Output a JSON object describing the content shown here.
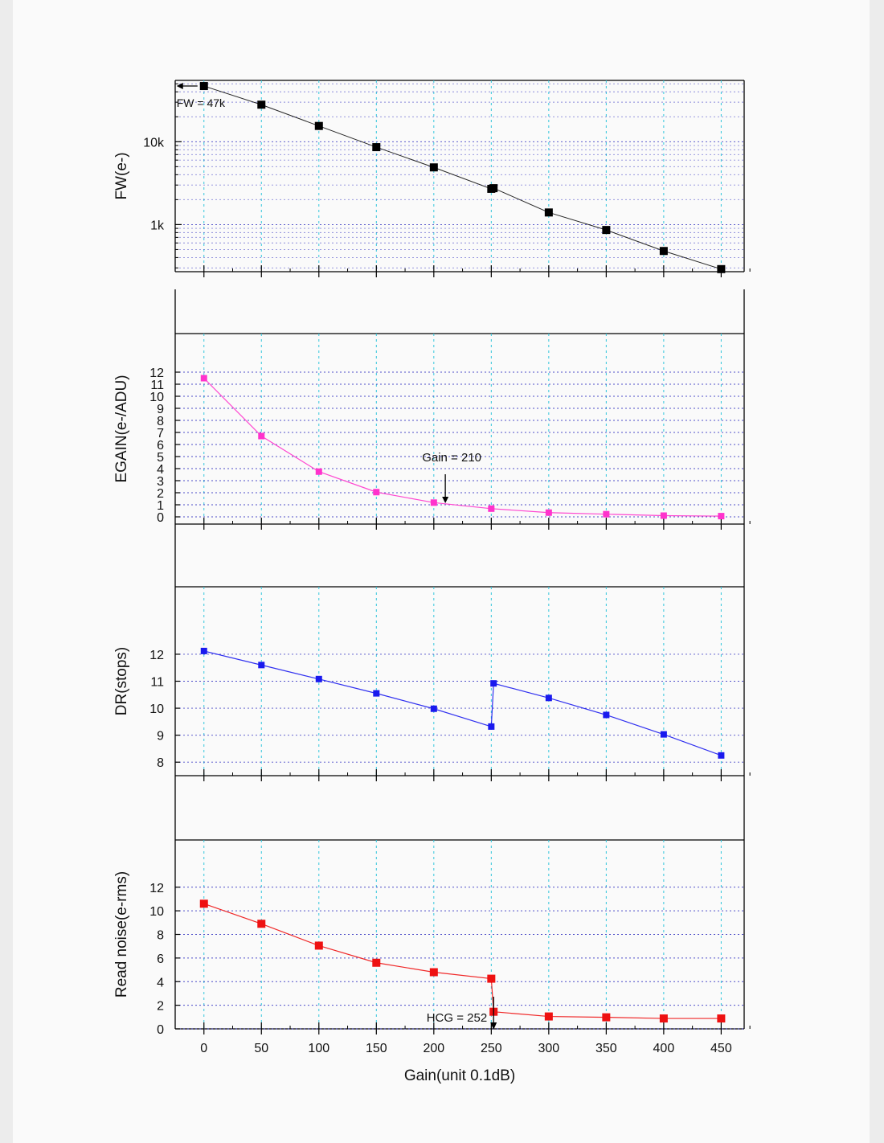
{
  "x_axis": {
    "label": "Gain(unit 0.1dB)",
    "range": [
      -25,
      470
    ],
    "ticks": [
      0,
      50,
      100,
      150,
      200,
      250,
      300,
      350,
      400,
      450
    ],
    "tick_labels": [
      "0",
      "50",
      "100",
      "150",
      "200",
      "250",
      "300",
      "350",
      "400",
      "450"
    ]
  },
  "colors": {
    "fw": "#000000",
    "egain": "#ff33cc",
    "dr": "#1a1aee",
    "rn": "#ee1111",
    "grid_vertical": "#33c6dc",
    "grid_horizontal": "#3030c0"
  },
  "chart_data": [
    {
      "type": "line",
      "ylabel": "FW(e-)",
      "yscale": "log",
      "ylim": [
        270,
        55000
      ],
      "ytick_values": [
        1000,
        10000
      ],
      "ytick_labels": [
        "1k",
        "10k"
      ],
      "series": [
        {
          "color": "#000000",
          "x": [
            0,
            50,
            100,
            150,
            200,
            250,
            252,
            300,
            350,
            400,
            450
          ],
          "y": [
            47000,
            28000,
            15500,
            8600,
            4900,
            2700,
            2750,
            1400,
            860,
            480,
            290
          ]
        }
      ],
      "annotations": [
        {
          "text": "FW = 47k",
          "x": 0,
          "y": 47000
        }
      ]
    },
    {
      "type": "line",
      "ylabel": "EGAIN(e-/ADU)",
      "ylim": [
        -0.6,
        15.2
      ],
      "ytick_values": [
        0,
        1,
        2,
        3,
        4,
        5,
        6,
        7,
        8,
        9,
        10,
        11,
        12
      ],
      "ytick_labels": [
        "0",
        "1",
        "2",
        "3",
        "4",
        "5",
        "6",
        "7",
        "8",
        "9",
        "10",
        "11",
        "12"
      ],
      "series": [
        {
          "color": "#ff33cc",
          "x": [
            0,
            50,
            100,
            150,
            200,
            250,
            300,
            350,
            400,
            450
          ],
          "y": [
            11.5,
            6.7,
            3.75,
            2.05,
            1.18,
            0.68,
            0.35,
            0.22,
            0.1,
            0.06
          ]
        }
      ],
      "annotations": [
        {
          "text": "Gain = 210",
          "x": 210,
          "y": 1.0
        }
      ]
    },
    {
      "type": "line",
      "ylabel": "DR(stops)",
      "ylim": [
        7.5,
        14.5
      ],
      "ytick_values": [
        8,
        9,
        10,
        11,
        12
      ],
      "ytick_labels": [
        "8",
        "9",
        "10",
        "11",
        "12"
      ],
      "series": [
        {
          "color": "#1a1aee",
          "x": [
            0,
            50,
            100,
            150,
            200,
            250,
            252,
            300,
            350,
            400,
            450
          ],
          "y": [
            12.12,
            11.6,
            11.08,
            10.55,
            9.98,
            9.32,
            10.92,
            10.38,
            9.75,
            9.03,
            8.25
          ]
        }
      ]
    },
    {
      "type": "line",
      "ylabel": "Read noise(e-rms)",
      "ylim": [
        0,
        16
      ],
      "ytick_values": [
        0,
        2,
        4,
        6,
        8,
        10,
        12
      ],
      "ytick_labels": [
        "0",
        "2",
        "4",
        "6",
        "8",
        "10",
        "12"
      ],
      "series": [
        {
          "color": "#ee1111",
          "x": [
            0,
            50,
            100,
            150,
            200,
            250,
            252,
            300,
            350,
            400,
            450
          ],
          "y": [
            10.6,
            8.9,
            7.05,
            5.6,
            4.8,
            4.25,
            1.45,
            1.05,
            0.98,
            0.88,
            0.88
          ]
        }
      ],
      "annotations": [
        {
          "text": "HCG = 252",
          "x": 252,
          "y": 0
        }
      ]
    }
  ]
}
